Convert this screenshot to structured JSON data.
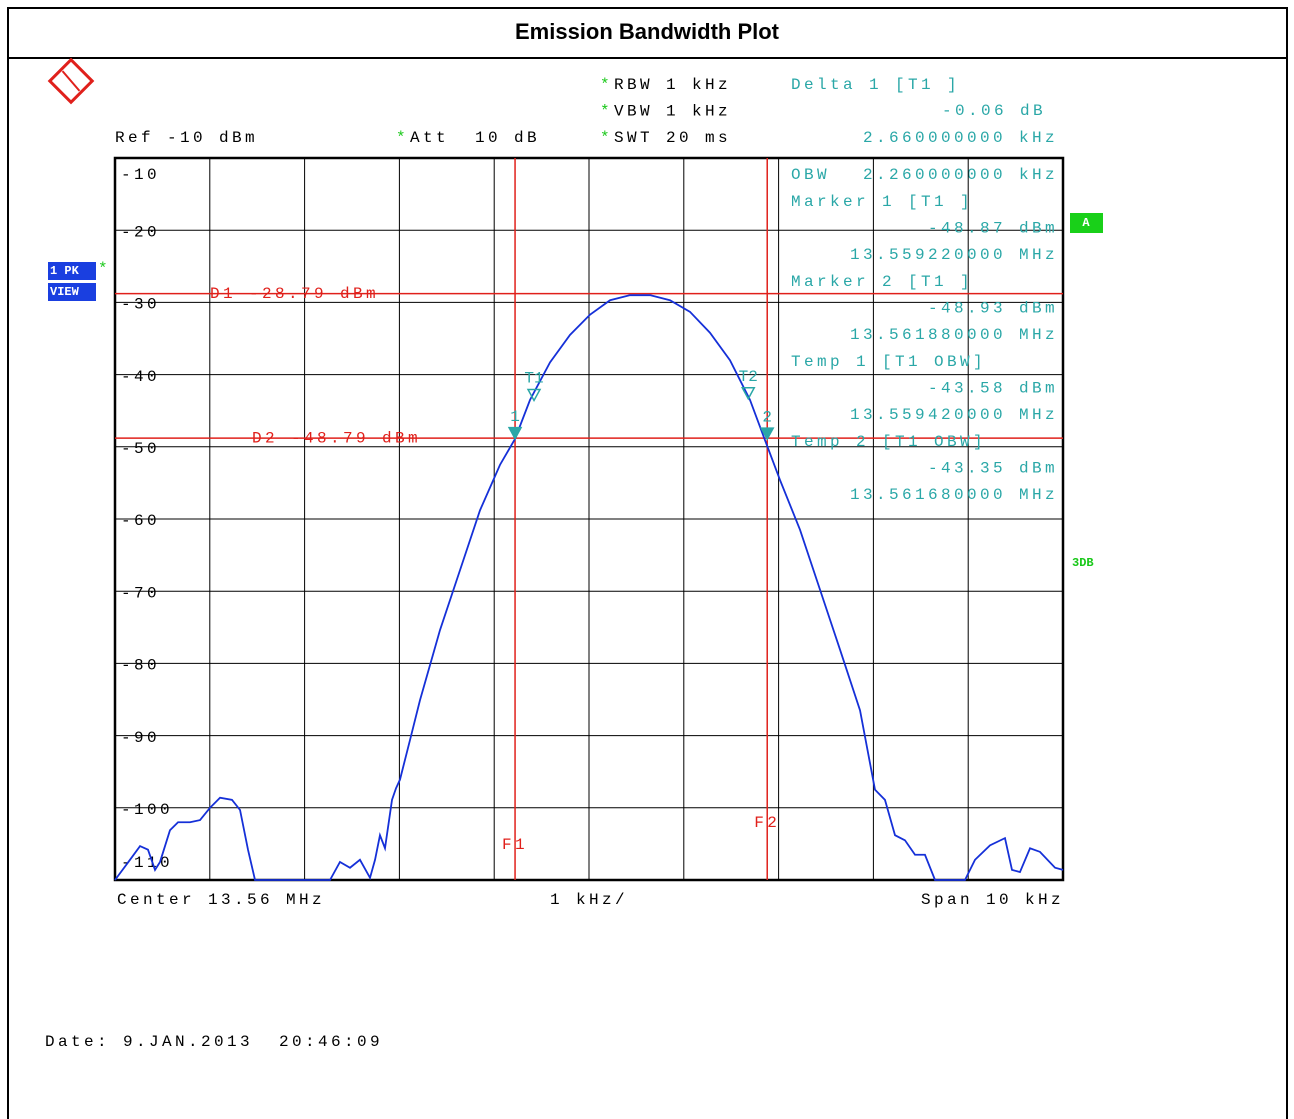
{
  "chart_data": {
    "type": "line",
    "title": "Emission Bandwidth Plot",
    "ref_level": "Ref -10 dBm",
    "setting_star": "*",
    "settings": [
      "RBW 1 kHz",
      "VBW 1 kHz",
      "SWT 20 ms"
    ],
    "att": "Att  10 dB",
    "trace_box": [
      "1 PK",
      "VIEW"
    ],
    "side_labels": [
      "A",
      "3DB"
    ],
    "x_center_label": "Center 13.56 MHz",
    "x_div_label": "1 kHz/",
    "x_span_label": "Span 10 kHz",
    "date": "Date: 9.JAN.2013  20:46:09",
    "xlim": [
      13.555,
      13.565
    ],
    "xticks": [
      13.555,
      13.556,
      13.557,
      13.558,
      13.559,
      13.56,
      13.561,
      13.562,
      13.563,
      13.564,
      13.565
    ],
    "ylim": [
      -110,
      -10
    ],
    "yticks": [
      -10,
      -20,
      -30,
      -40,
      -50,
      -60,
      -70,
      -80,
      -90,
      -100,
      -110
    ],
    "grid": true,
    "color": "#1530d8",
    "x": [
      13.555,
      13.555158,
      13.555264,
      13.555348,
      13.555422,
      13.555475,
      13.55558,
      13.555665,
      13.555791,
      13.555897,
      13.556002,
      13.556108,
      13.556234,
      13.556319,
      13.556403,
      13.556477,
      13.557268,
      13.557373,
      13.557479,
      13.557584,
      13.55769,
      13.557743,
      13.557795,
      13.557848,
      13.557922,
      13.557964,
      13.558006,
      13.558112,
      13.558217,
      13.558428,
      13.558639,
      13.55885,
      13.559061,
      13.55922,
      13.559378,
      13.559589,
      13.5598,
      13.560011,
      13.560222,
      13.560433,
      13.560644,
      13.560854,
      13.561065,
      13.561276,
      13.561487,
      13.561698,
      13.561857,
      13.562015,
      13.562226,
      13.562437,
      13.562648,
      13.562859,
      13.563017,
      13.563122,
      13.563228,
      13.563333,
      13.563439,
      13.563544,
      13.56365,
      13.563966,
      13.564072,
      13.56423,
      13.564388,
      13.564462,
      13.564546,
      13.564652,
      13.564757,
      13.564916,
      13.565
    ],
    "values": [
      -110,
      -107.2,
      -105.3,
      -105.8,
      -108.6,
      -107.5,
      -103.1,
      -102.0,
      -102.0,
      -101.7,
      -100.0,
      -98.6,
      -98.9,
      -100.3,
      -105.8,
      -110,
      -110,
      -107.5,
      -108.3,
      -107.2,
      -109.7,
      -107.2,
      -103.8,
      -105.6,
      -98.9,
      -97.3,
      -96.1,
      -90.6,
      -85.1,
      -75.4,
      -67.1,
      -58.8,
      -52.5,
      -48.9,
      -43.5,
      -38.3,
      -34.5,
      -31.7,
      -29.7,
      -29.0,
      -29.0,
      -29.7,
      -31.3,
      -34.2,
      -38.0,
      -43.5,
      -49.1,
      -54.6,
      -61.5,
      -69.8,
      -78.1,
      -86.5,
      -97.5,
      -98.9,
      -103.8,
      -104.5,
      -106.5,
      -106.5,
      -110,
      -110,
      -107.2,
      -105.2,
      -104.2,
      -108.6,
      -108.9,
      -105.6,
      -106.1,
      -108.3,
      -108.6
    ],
    "display_lines": [
      {
        "label": "D1 -28.79 dBm",
        "value": -28.79
      },
      {
        "label": "D2 -48.79 dBm",
        "value": -48.79
      }
    ],
    "frequency_lines": [
      {
        "label": "F1",
        "x": 13.55922
      },
      {
        "label": "F2",
        "x": 13.56188
      }
    ],
    "delta": {
      "name": "Delta 1 [T1 ]",
      "value_label": "-0.06 dB",
      "x_label": "2.660000000 kHz"
    },
    "obw": {
      "name": "OBW",
      "value_label": "2.260000000 kHz"
    },
    "markers": [
      {
        "name": "Marker 1 [T1 ]",
        "symbol": "1",
        "x": 13.55922,
        "value": -48.87,
        "value_label": "-48.87 dBm",
        "x_label": "13.559220000 MHz"
      },
      {
        "name": "Marker 2 [T1 ]",
        "symbol": "2",
        "x": 13.56188,
        "value": -48.93,
        "value_label": "-48.93 dBm",
        "x_label": "13.561880000 MHz"
      },
      {
        "name": "Temp 1 [T1 OBW]",
        "symbol": "T1",
        "x": 13.55942,
        "value": -43.58,
        "value_label": "-43.58 dBm",
        "x_label": "13.559420000 MHz"
      },
      {
        "name": "Temp 2 [T1 OBW]",
        "symbol": "T2",
        "x": 13.56168,
        "value": -43.35,
        "value_label": "-43.35 dBm",
        "x_label": "13.561680000 MHz"
      }
    ]
  }
}
